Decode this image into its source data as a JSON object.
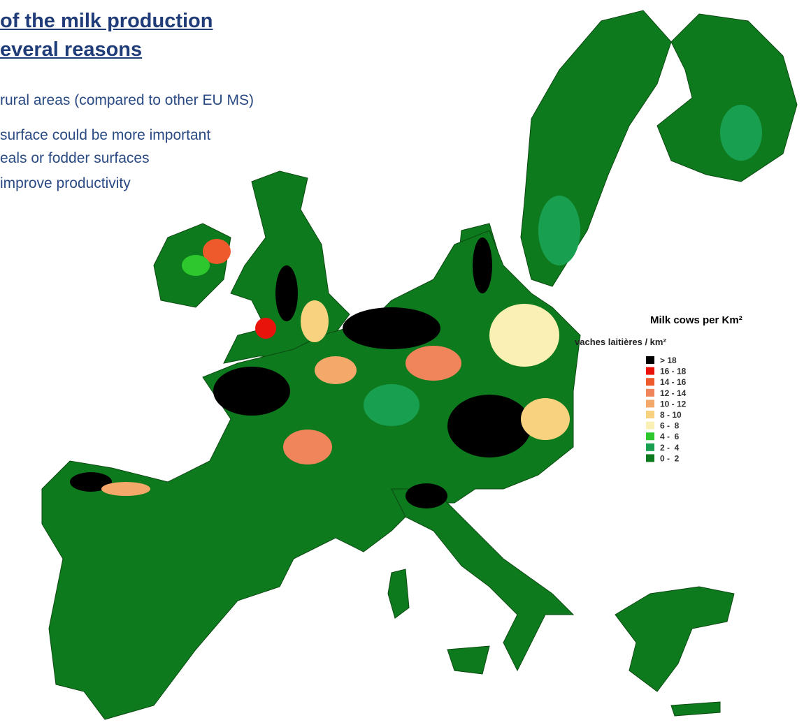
{
  "header": {
    "title_lines": [
      "of the milk production",
      "everal reasons"
    ]
  },
  "bullets": [
    "rural areas (compared to other EU MS)",
    "surface could be more important",
    "eals or fodder surfaces",
    "improve productivity"
  ],
  "legend": {
    "title": "Milk cows per Km²",
    "subtitle": "vaches laitières / km²",
    "items": [
      {
        "label": "> 18",
        "color": "#000000"
      },
      {
        "label": "16 - 18",
        "color": "#e8140c"
      },
      {
        "label": "14 - 16",
        "color": "#ee5a2c"
      },
      {
        "label": "12 - 14",
        "color": "#f0845a"
      },
      {
        "label": "10 - 12",
        "color": "#f4a86a"
      },
      {
        "label": "8 - 10",
        "color": "#f8d27e"
      },
      {
        "label": "6 -  8",
        "color": "#fbf0b4"
      },
      {
        "label": "4 -  6",
        "color": "#2ec82e"
      },
      {
        "label": "2 -  4",
        "color": "#18a050"
      },
      {
        "label": "0 -  2",
        "color": "#0e7a1e"
      }
    ]
  }
}
